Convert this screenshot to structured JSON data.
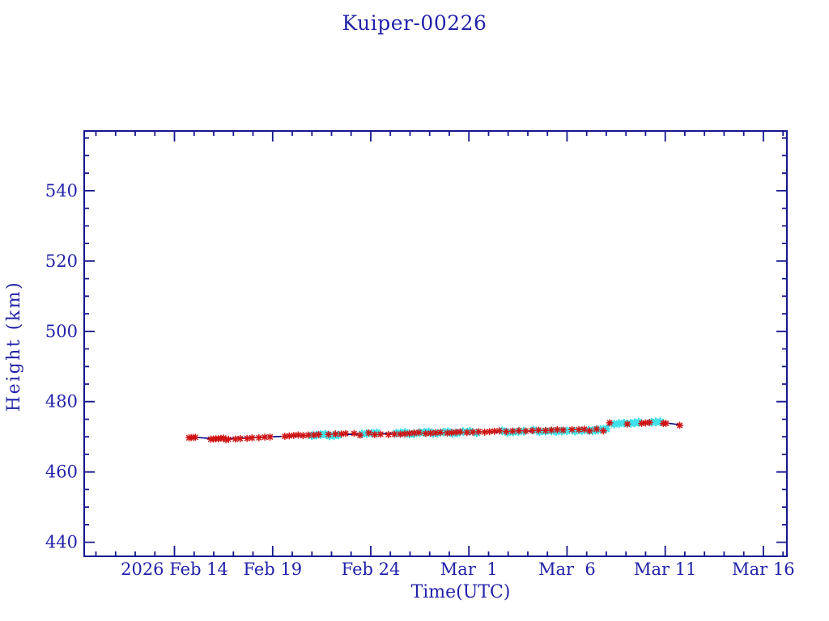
{
  "page": {
    "background": "#ffffff"
  },
  "chart_data": {
    "type": "line",
    "title": "Kuiper-00226",
    "xlabel": "Time(UTC)",
    "ylabel": "Height (km)",
    "colors": {
      "text": "#2222aa",
      "frame": "#16168e",
      "trend_line": "#00008b",
      "red_markers": "#d01414",
      "cyan_markers": "#3fe2e8"
    },
    "x_axis": {
      "unit": "day-of-year 2026 (Feb 14 = 45)",
      "lim": [
        40.4,
        76.2
      ],
      "minor_tick_step_days": 1,
      "major_tick_step_days": 5,
      "major_ticks": [
        {
          "doy": 45,
          "label": "2026 Feb 14"
        },
        {
          "doy": 50,
          "label": "Feb 19"
        },
        {
          "doy": 55,
          "label": "Feb 24"
        },
        {
          "doy": 60,
          "label": "Mar  1"
        },
        {
          "doy": 65,
          "label": "Mar  6"
        },
        {
          "doy": 70,
          "label": "Mar 11"
        },
        {
          "doy": 75,
          "label": "Mar 16"
        }
      ]
    },
    "y_axis": {
      "unit": "km",
      "lim": [
        436,
        557
      ],
      "minor_tick_step": 5,
      "major_tick_step": 20,
      "major_ticks": [
        {
          "km": 440,
          "label": "440"
        },
        {
          "km": 460,
          "label": "460"
        },
        {
          "km": 480,
          "label": "480"
        },
        {
          "km": 500,
          "label": "500"
        },
        {
          "km": 520,
          "label": "520"
        },
        {
          "km": 540,
          "label": "540"
        }
      ]
    },
    "grid": false,
    "legend": "none",
    "series": [
      {
        "name": "height-trend-line",
        "type": "line",
        "points": [
          [
            45.74,
            470.0
          ],
          [
            46.4,
            469.7
          ],
          [
            47.3,
            469.4
          ],
          [
            48.4,
            469.6
          ],
          [
            49.9,
            470.0
          ],
          [
            51.0,
            470.2
          ],
          [
            52.6,
            470.5
          ],
          [
            54.7,
            470.8
          ],
          [
            56.7,
            471.0
          ],
          [
            58.8,
            471.2
          ],
          [
            60.9,
            471.4
          ],
          [
            62.9,
            471.6
          ],
          [
            65.0,
            471.8
          ],
          [
            67.0,
            472.0
          ],
          [
            67.15,
            473.7
          ],
          [
            68.5,
            474.0
          ],
          [
            69.5,
            474.2
          ],
          [
            70.1,
            473.9
          ],
          [
            70.75,
            473.4
          ]
        ]
      },
      {
        "name": "red-asterisk-markers",
        "type": "marker-clusters",
        "marker": "asterisk",
        "color_key": "red_markers",
        "clusters": [
          [
            45.74,
            46.06,
            4
          ],
          [
            46.85,
            47.75,
            8
          ],
          [
            48.1,
            48.35,
            2
          ],
          [
            48.7,
            48.95,
            2
          ],
          [
            49.3,
            49.6,
            2
          ],
          [
            49.82,
            49.92,
            1
          ],
          [
            50.62,
            51.3,
            4
          ],
          [
            51.55,
            51.82,
            2
          ],
          [
            52.1,
            52.35,
            2
          ],
          [
            52.85,
            53.2,
            2
          ],
          [
            53.5,
            53.72,
            2
          ],
          [
            54.15,
            54.45,
            2
          ],
          [
            54.9,
            55.5,
            3
          ],
          [
            55.9,
            56.2,
            2
          ],
          [
            56.5,
            57.45,
            5
          ],
          [
            57.8,
            58.55,
            4
          ],
          [
            58.9,
            59.55,
            4
          ],
          [
            59.9,
            60.5,
            3
          ],
          [
            60.8,
            61.55,
            4
          ],
          [
            61.9,
            62.55,
            3
          ],
          [
            62.9,
            63.55,
            3
          ],
          [
            63.9,
            64.5,
            3
          ],
          [
            64.8,
            65.25,
            2
          ],
          [
            65.6,
            66.15,
            3
          ],
          [
            66.5,
            66.85,
            2
          ],
          [
            67.12,
            67.22,
            1
          ],
          [
            68.02,
            68.12,
            1
          ],
          [
            68.8,
            69.2,
            3
          ],
          [
            69.9,
            70.04,
            2
          ],
          [
            70.7,
            70.78,
            1
          ]
        ]
      },
      {
        "name": "cyan-asterisk-markers",
        "type": "marker-clusters",
        "marker": "asterisk",
        "color_key": "cyan_markers",
        "clusters": [
          [
            52.0,
            53.35,
            7
          ],
          [
            54.55,
            55.3,
            4
          ],
          [
            56.3,
            57.2,
            5
          ],
          [
            57.5,
            58.4,
            5
          ],
          [
            58.7,
            59.4,
            4
          ],
          [
            59.7,
            60.4,
            3
          ],
          [
            61.7,
            62.8,
            5
          ],
          [
            63.3,
            64.2,
            4
          ],
          [
            64.45,
            65.0,
            3
          ],
          [
            65.4,
            66.1,
            3
          ],
          [
            66.3,
            67.0,
            6
          ],
          [
            67.4,
            67.9,
            3
          ],
          [
            68.25,
            68.65,
            3
          ],
          [
            69.3,
            69.75,
            3
          ]
        ]
      }
    ]
  }
}
